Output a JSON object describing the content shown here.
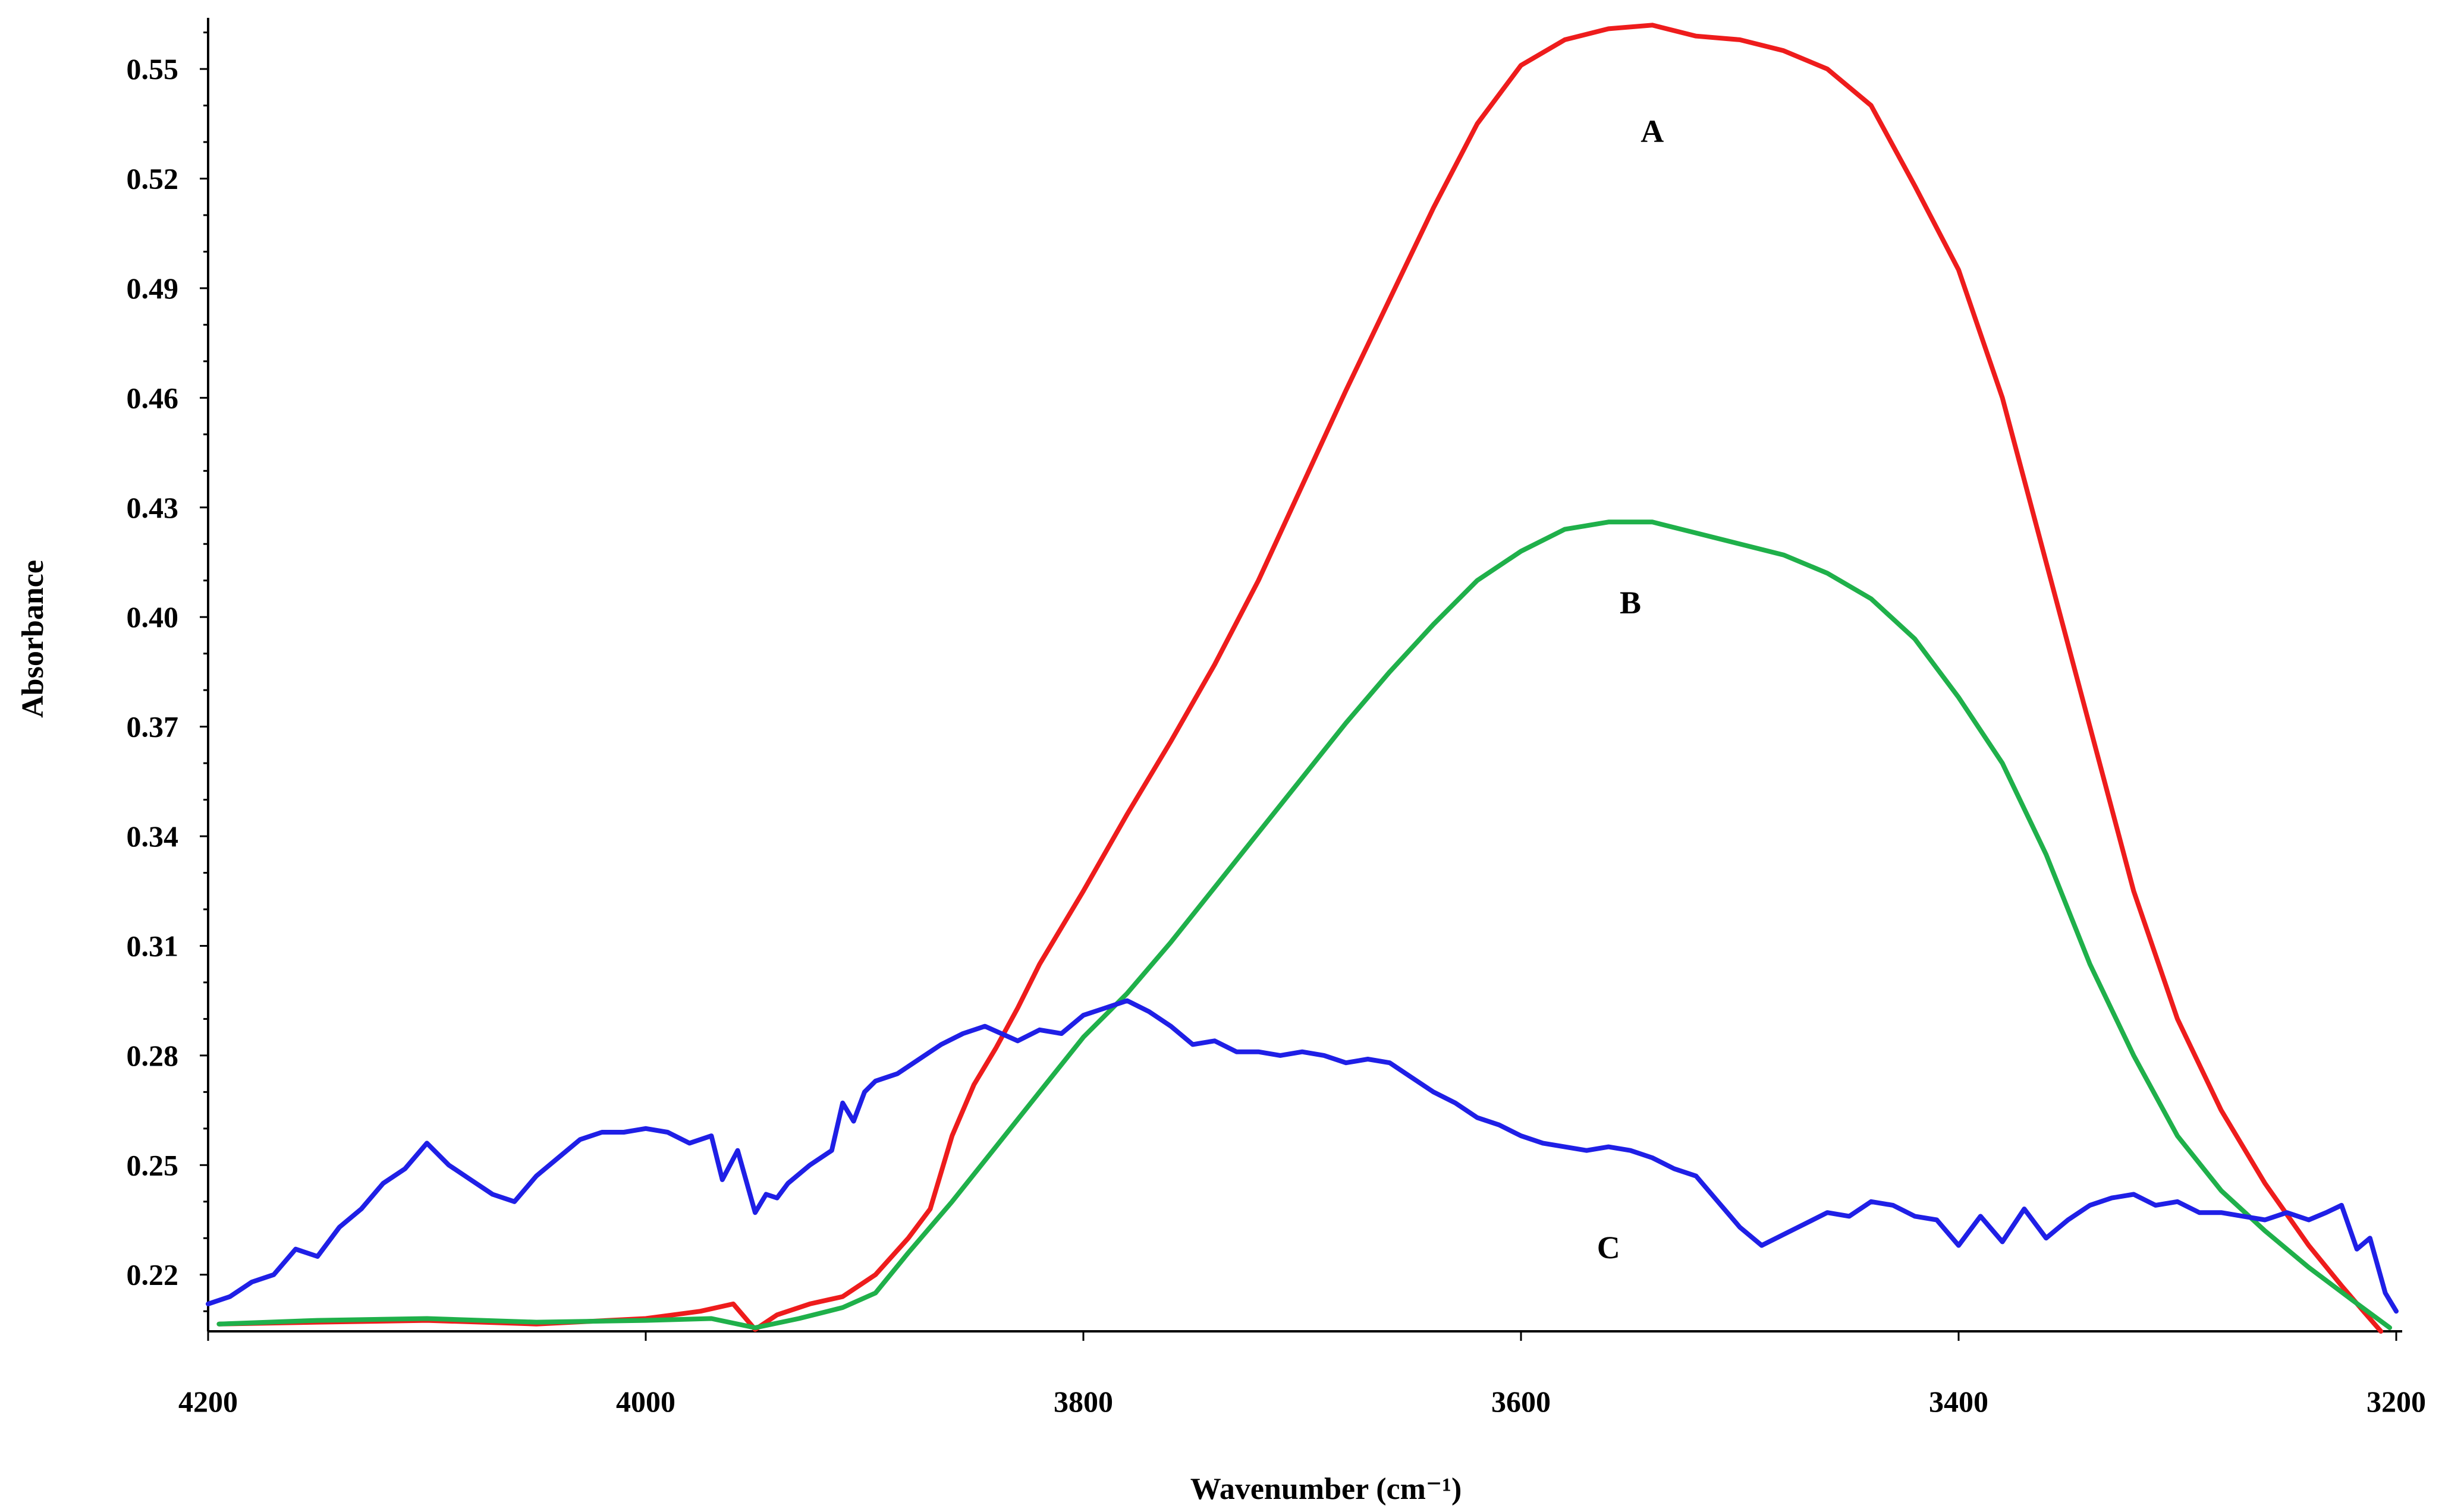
{
  "chart_data": {
    "type": "line",
    "title": "",
    "xlabel": "Wavenumber (cm⁻¹)",
    "ylabel": "Absorbance",
    "xlim": [
      4200,
      3200
    ],
    "ylim": [
      0.2045,
      0.564
    ],
    "x_reversed": true,
    "xticks": [
      4200,
      4000,
      3800,
      3600,
      3400,
      3200
    ],
    "xtick_labels": [
      "4200",
      "4000",
      "3800",
      "3600",
      "3400",
      "3200"
    ],
    "yticks": [
      0.22,
      0.25,
      0.28,
      0.31,
      0.34,
      0.37,
      0.4,
      0.43,
      0.46,
      0.49,
      0.52,
      0.55
    ],
    "ytick_labels": [
      "0.22",
      "0.25",
      "0.28",
      "0.31",
      "0.34",
      "0.37",
      "0.40",
      "0.43",
      "0.46",
      "0.49",
      "0.52",
      "0.55"
    ],
    "grid": false,
    "series": [
      {
        "name": "A",
        "label": "A",
        "color": "#ee1c1c",
        "label_at": [
          3540,
          0.53
        ],
        "x": [
          4195,
          4150,
          4100,
          4050,
          4000,
          3975,
          3960,
          3950,
          3940,
          3925,
          3910,
          3895,
          3880,
          3870,
          3860,
          3850,
          3840,
          3830,
          3820,
          3800,
          3780,
          3760,
          3740,
          3720,
          3700,
          3680,
          3660,
          3640,
          3620,
          3600,
          3580,
          3560,
          3540,
          3520,
          3500,
          3480,
          3460,
          3440,
          3420,
          3400,
          3380,
          3360,
          3340,
          3320,
          3300,
          3280,
          3260,
          3240,
          3225,
          3215,
          3207
        ],
        "y": [
          0.2065,
          0.207,
          0.2075,
          0.2065,
          0.208,
          0.21,
          0.212,
          0.205,
          0.209,
          0.212,
          0.214,
          0.22,
          0.23,
          0.238,
          0.258,
          0.272,
          0.282,
          0.293,
          0.305,
          0.325,
          0.346,
          0.366,
          0.387,
          0.41,
          0.436,
          0.462,
          0.487,
          0.512,
          0.535,
          0.551,
          0.558,
          0.561,
          0.562,
          0.559,
          0.558,
          0.555,
          0.55,
          0.54,
          0.518,
          0.495,
          0.46,
          0.415,
          0.37,
          0.325,
          0.29,
          0.265,
          0.245,
          0.228,
          0.217,
          0.21,
          0.2045
        ]
      },
      {
        "name": "B",
        "label": "B",
        "color": "#1fb04a",
        "label_at": [
          3550,
          0.401
        ],
        "x": [
          4195,
          4150,
          4100,
          4050,
          4000,
          3970,
          3950,
          3930,
          3910,
          3895,
          3880,
          3860,
          3840,
          3820,
          3800,
          3780,
          3760,
          3740,
          3720,
          3700,
          3680,
          3660,
          3640,
          3620,
          3600,
          3580,
          3560,
          3540,
          3520,
          3500,
          3480,
          3460,
          3440,
          3420,
          3400,
          3380,
          3360,
          3340,
          3320,
          3300,
          3280,
          3260,
          3240,
          3220,
          3203
        ],
        "y": [
          0.2065,
          0.2075,
          0.208,
          0.207,
          0.2075,
          0.208,
          0.2055,
          0.208,
          0.211,
          0.215,
          0.226,
          0.24,
          0.255,
          0.27,
          0.285,
          0.297,
          0.311,
          0.326,
          0.341,
          0.356,
          0.371,
          0.385,
          0.398,
          0.41,
          0.418,
          0.424,
          0.426,
          0.426,
          0.423,
          0.42,
          0.417,
          0.412,
          0.405,
          0.394,
          0.378,
          0.36,
          0.335,
          0.305,
          0.28,
          0.258,
          0.243,
          0.232,
          0.222,
          0.213,
          0.2055
        ]
      },
      {
        "name": "C",
        "label": "C",
        "color": "#1f1fe6",
        "label_at": [
          3560,
          0.2245
        ],
        "x": [
          4200,
          4190,
          4180,
          4170,
          4160,
          4150,
          4140,
          4130,
          4120,
          4110,
          4100,
          4090,
          4080,
          4070,
          4060,
          4050,
          4040,
          4030,
          4020,
          4010,
          4000,
          3990,
          3980,
          3970,
          3965,
          3958,
          3950,
          3945,
          3940,
          3935,
          3925,
          3915,
          3910,
          3905,
          3900,
          3895,
          3885,
          3875,
          3865,
          3855,
          3845,
          3830,
          3820,
          3810,
          3800,
          3790,
          3780,
          3770,
          3760,
          3750,
          3740,
          3730,
          3720,
          3710,
          3700,
          3690,
          3680,
          3670,
          3660,
          3650,
          3640,
          3630,
          3620,
          3610,
          3600,
          3590,
          3580,
          3570,
          3560,
          3550,
          3540,
          3530,
          3520,
          3510,
          3500,
          3490,
          3480,
          3470,
          3460,
          3450,
          3440,
          3430,
          3420,
          3410,
          3400,
          3390,
          3380,
          3370,
          3360,
          3350,
          3340,
          3330,
          3320,
          3310,
          3300,
          3290,
          3280,
          3270,
          3260,
          3250,
          3240,
          3232,
          3225,
          3218,
          3212,
          3205,
          3200
        ],
        "y": [
          0.212,
          0.214,
          0.218,
          0.22,
          0.227,
          0.225,
          0.233,
          0.238,
          0.245,
          0.249,
          0.256,
          0.25,
          0.246,
          0.242,
          0.24,
          0.247,
          0.252,
          0.257,
          0.259,
          0.259,
          0.26,
          0.259,
          0.256,
          0.258,
          0.246,
          0.254,
          0.237,
          0.242,
          0.241,
          0.245,
          0.25,
          0.254,
          0.267,
          0.262,
          0.27,
          0.273,
          0.275,
          0.279,
          0.283,
          0.286,
          0.288,
          0.284,
          0.287,
          0.286,
          0.291,
          0.293,
          0.295,
          0.292,
          0.288,
          0.283,
          0.284,
          0.281,
          0.281,
          0.28,
          0.281,
          0.28,
          0.278,
          0.279,
          0.278,
          0.274,
          0.27,
          0.267,
          0.263,
          0.261,
          0.258,
          0.256,
          0.255,
          0.254,
          0.255,
          0.254,
          0.252,
          0.249,
          0.247,
          0.24,
          0.233,
          0.228,
          0.231,
          0.234,
          0.237,
          0.236,
          0.24,
          0.239,
          0.236,
          0.235,
          0.228,
          0.236,
          0.229,
          0.238,
          0.23,
          0.235,
          0.239,
          0.241,
          0.242,
          0.239,
          0.24,
          0.237,
          0.237,
          0.236,
          0.235,
          0.237,
          0.235,
          0.237,
          0.239,
          0.227,
          0.23,
          0.215,
          0.21
        ]
      }
    ]
  }
}
